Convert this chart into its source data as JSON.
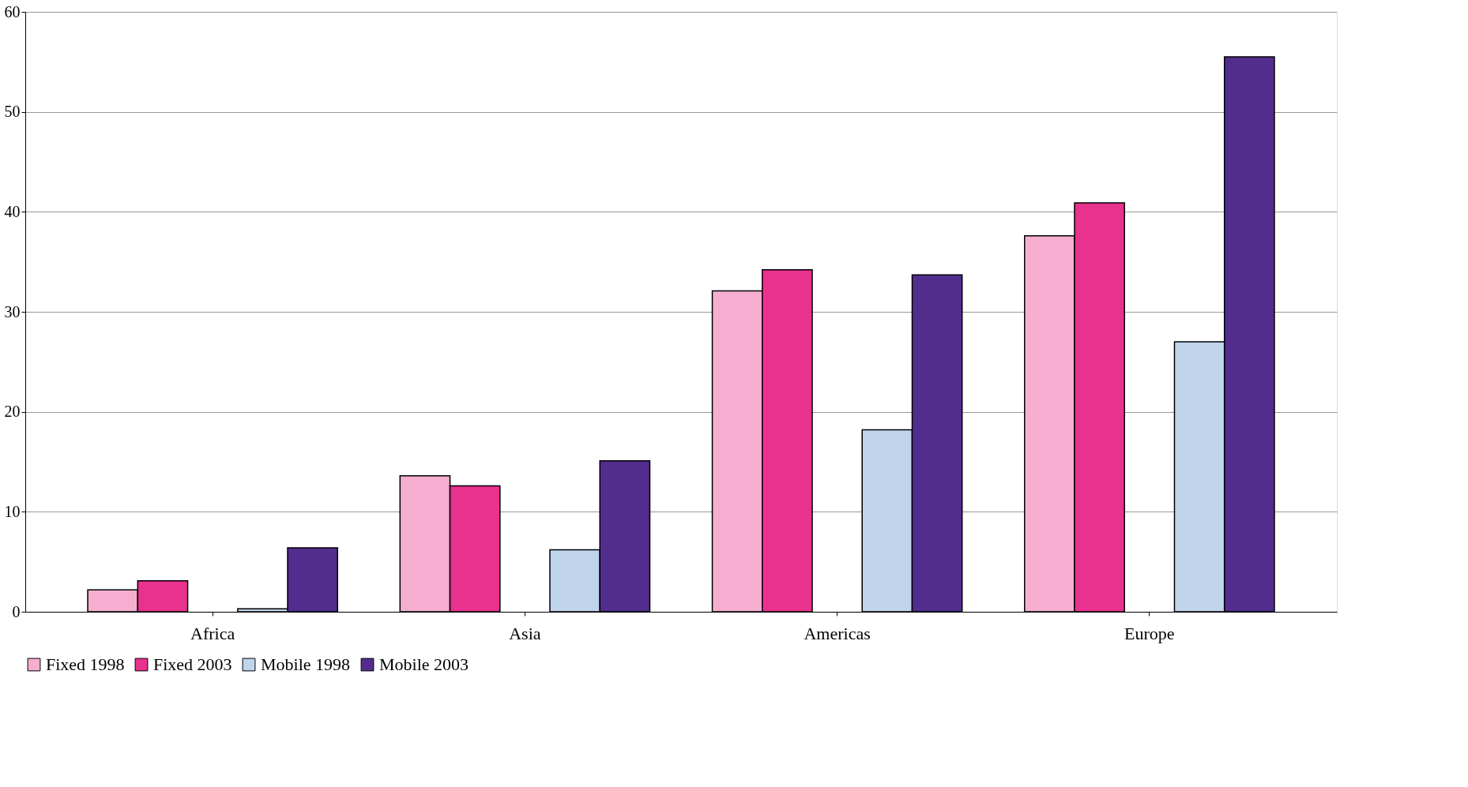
{
  "chart_data": {
    "type": "bar",
    "categories": [
      "Africa",
      "Asia",
      "Americas",
      "Europe"
    ],
    "series": [
      {
        "name": "Fixed 1998",
        "color": "#f5aed0",
        "values": [
          2.2,
          13.6,
          32.1,
          37.6
        ]
      },
      {
        "name": "Fixed 2003",
        "color": "#e9318e",
        "values": [
          3.1,
          12.6,
          34.2,
          40.9
        ]
      },
      {
        "name": "Mobile 1998",
        "color": "#c0d4ec",
        "values": [
          0.3,
          6.2,
          18.2,
          27.0
        ]
      },
      {
        "name": "Mobile 2003",
        "color": "#532d8e",
        "values": [
          6.4,
          15.1,
          33.7,
          55.5
        ]
      }
    ],
    "ylim": [
      0,
      60
    ],
    "yticks": [
      0,
      10,
      20,
      30,
      40,
      50,
      60
    ],
    "grid": "y",
    "legend": "bottom"
  }
}
